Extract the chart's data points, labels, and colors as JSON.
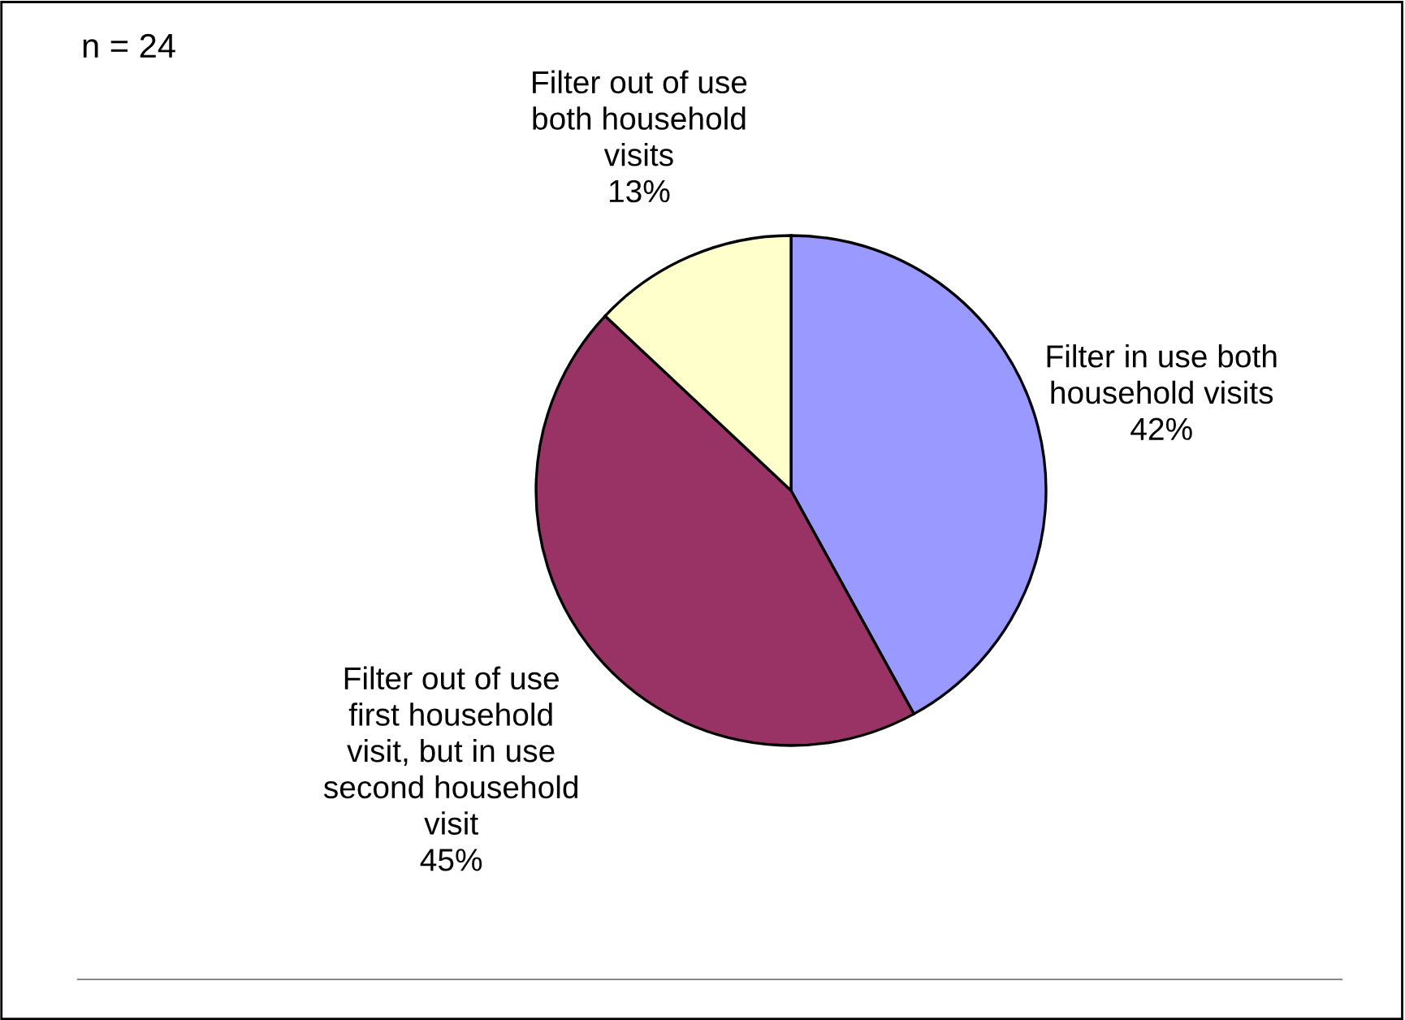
{
  "chart_data": {
    "type": "pie",
    "categories": [
      "Filter in use both\nhousehold visits",
      "Filter out of use\nfirst household\nvisit, but in use\nsecond household\nvisit",
      "Filter out of use\nboth household\nvisits"
    ],
    "values": [
      42,
      45,
      13
    ],
    "value_labels": [
      "42%",
      "45%",
      "13%"
    ],
    "colors": [
      "#9999ff",
      "#993366",
      "#ffffcc"
    ],
    "annotations": [
      "n = 24"
    ]
  }
}
